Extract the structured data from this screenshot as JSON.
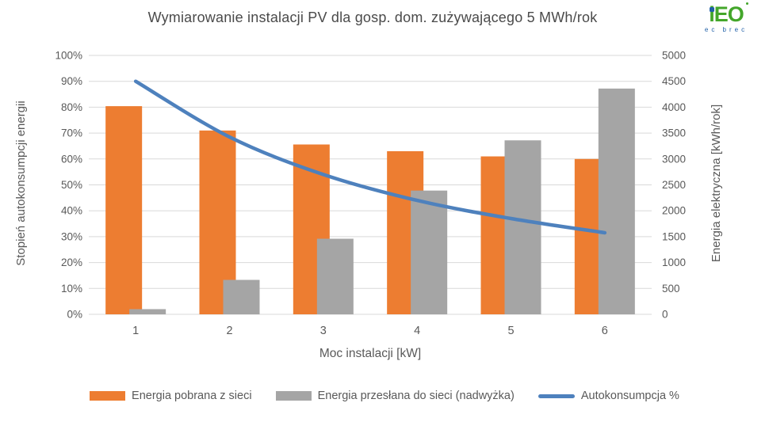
{
  "header": {
    "title": "Wymiarowanie instalacji PV dla gosp. dom. zużywającego 5 MWh/rok",
    "logo": {
      "text": "iEO",
      "subtext": "ec brec",
      "green": "#43a62a",
      "blue": "#2160a8"
    }
  },
  "chart_data": {
    "type": "combo-bar-line",
    "title": "Wymiarowanie instalacji PV dla gosp. dom. zużywającego 5 MWh/rok",
    "categories": [
      "1",
      "2",
      "3",
      "4",
      "5",
      "6"
    ],
    "xlabel": "Moc instalacji [kW]",
    "left_axis": {
      "label": "Stopień autokonsumpcji energii",
      "min": 0,
      "max": 100,
      "step": 10,
      "ticks": [
        "0%",
        "10%",
        "20%",
        "30%",
        "40%",
        "50%",
        "60%",
        "70%",
        "80%",
        "90%",
        "100%"
      ]
    },
    "right_axis": {
      "label": "Energia elektryczna [kWh/rok]",
      "min": 0,
      "max": 5000,
      "step": 500,
      "ticks": [
        "0",
        "500",
        "1000",
        "1500",
        "2000",
        "2500",
        "3000",
        "3500",
        "4000",
        "4500",
        "5000"
      ]
    },
    "series": [
      {
        "name": "Energia pobrana z sieci",
        "type": "bar",
        "axis": "right",
        "color": "#ED7D31",
        "values": [
          4020,
          3550,
          3280,
          3150,
          3050,
          3000
        ]
      },
      {
        "name": "Energia przesłana do sieci (nadwyżka)",
        "type": "bar",
        "axis": "right",
        "color": "#A5A5A5",
        "values": [
          100,
          665,
          1460,
          2390,
          3360,
          4360
        ]
      },
      {
        "name": "Autokonsumpcja %",
        "type": "line",
        "axis": "left",
        "color": "#4E81BD",
        "values": [
          90,
          68.5,
          54,
          44,
          37,
          31.5
        ]
      }
    ],
    "grid": "horizontal-only",
    "gridline_color": "#D9D9D9",
    "tick_label_color": "#595959",
    "legend_position": "bottom"
  }
}
